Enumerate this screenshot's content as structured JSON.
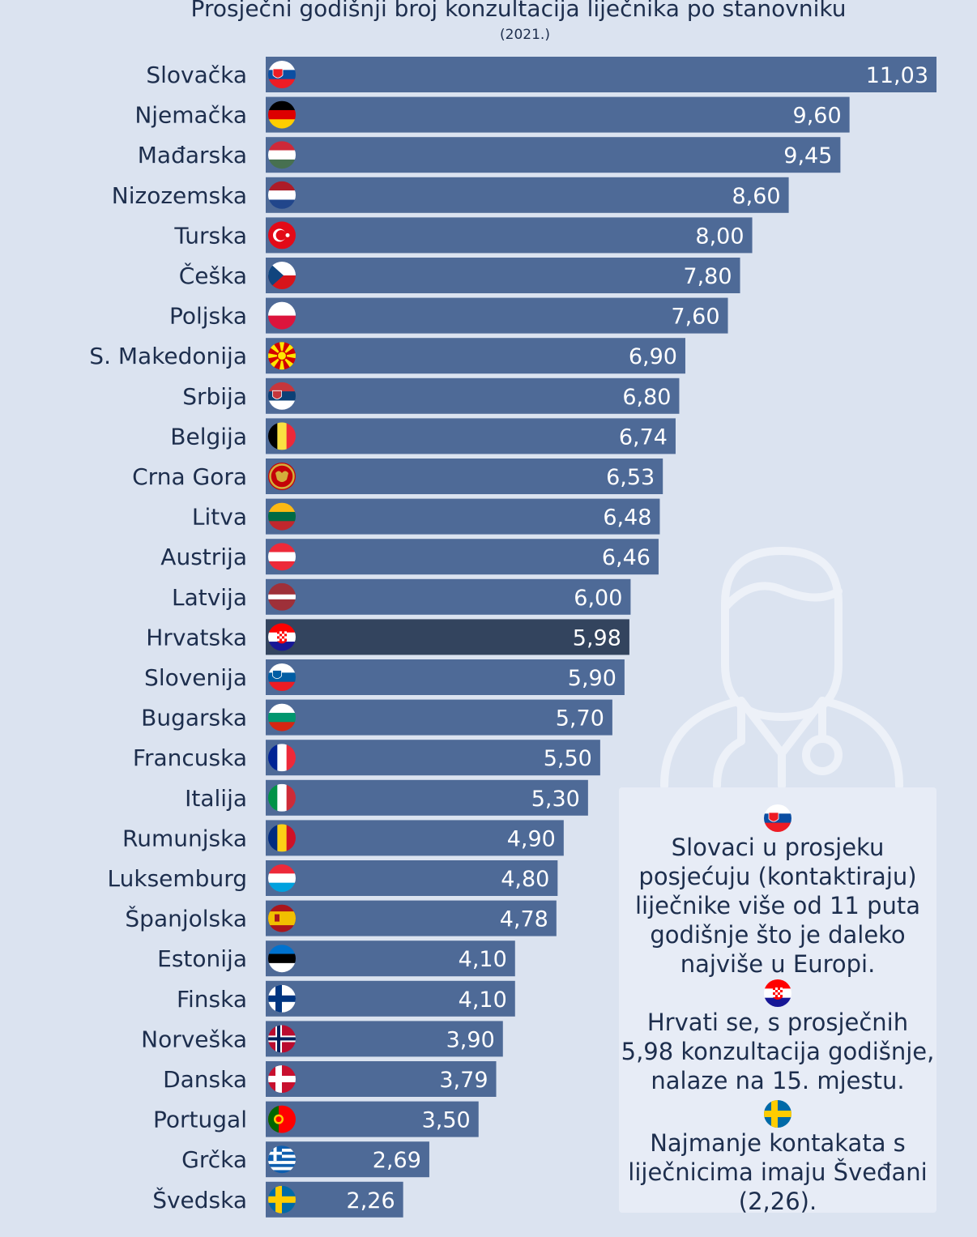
{
  "chart_data": {
    "type": "bar",
    "orientation": "horizontal",
    "title": "Prosječni godišnji broj konzultacija liječnika po stanovniku",
    "subtitle": "(2021.)",
    "categories": [
      "Slovačka",
      "Njemačka",
      "Mađarska",
      "Nizozemska",
      "Turska",
      "Češka",
      "Poljska",
      "S. Makedonija",
      "Srbija",
      "Belgija",
      "Crna Gora",
      "Litva",
      "Austrija",
      "Latvija",
      "Hrvatska",
      "Slovenija",
      "Bugarska",
      "Francuska",
      "Italija",
      "Rumunjska",
      "Luksemburg",
      "Španjolska",
      "Estonija",
      "Finska",
      "Norveška",
      "Danska",
      "Portugal",
      "Grčka",
      "Švedska"
    ],
    "values": [
      11.03,
      9.6,
      9.45,
      8.6,
      8.0,
      7.8,
      7.6,
      6.9,
      6.8,
      6.74,
      6.53,
      6.48,
      6.46,
      6.0,
      5.98,
      5.9,
      5.7,
      5.5,
      5.3,
      4.9,
      4.8,
      4.78,
      4.1,
      4.1,
      3.9,
      3.79,
      3.5,
      2.69,
      2.26
    ],
    "value_labels": [
      "11,03",
      "9,60",
      "9,45",
      "8,60",
      "8,00",
      "7,80",
      "7,60",
      "6,90",
      "6,80",
      "6,74",
      "6,53",
      "6,48",
      "6,46",
      "6,00",
      "5,98",
      "5,90",
      "5,70",
      "5,50",
      "5,30",
      "4,90",
      "4,80",
      "4,78",
      "4,10",
      "4,10",
      "3,90",
      "3,79",
      "3,50",
      "2,69",
      "2,26"
    ],
    "flags": [
      "flag-slovakia-icon",
      "flag-germany-icon",
      "flag-hungary-icon",
      "flag-netherlands-icon",
      "flag-turkey-icon",
      "flag-czechia-icon",
      "flag-poland-icon",
      "flag-north-macedonia-icon",
      "flag-serbia-icon",
      "flag-belgium-icon",
      "flag-montenegro-icon",
      "flag-lithuania-icon",
      "flag-austria-icon",
      "flag-latvia-icon",
      "flag-croatia-icon",
      "flag-slovenia-icon",
      "flag-bulgaria-icon",
      "flag-france-icon",
      "flag-italy-icon",
      "flag-romania-icon",
      "flag-luxembourg-icon",
      "flag-spain-icon",
      "flag-estonia-icon",
      "flag-finland-icon",
      "flag-norway-icon",
      "flag-denmark-icon",
      "flag-portugal-icon",
      "flag-greece-icon",
      "flag-sweden-icon"
    ],
    "highlight": "Hrvatska",
    "xlim": [
      0,
      11.03
    ],
    "grid": false,
    "legend": "none"
  },
  "colors": {
    "background": "#dbe3f0",
    "bar": "#4e6a97",
    "bar_highlight": "#33445e",
    "text": "#1d2e4d",
    "value_text": "#ffffff"
  },
  "info_box": {
    "items": [
      {
        "flag": "flag-slovakia-icon",
        "text": "Slovaci u prosjeku posjećuju (kontaktiraju) liječnike više od 11 puta godišnje što je daleko najviše u Europi."
      },
      {
        "flag": "flag-croatia-icon",
        "text": "Hrvati se, s prosječnih 5,98 konzultacija godišnje, nalaze na 15. mjestu."
      },
      {
        "flag": "flag-sweden-icon",
        "text": "Najmanje kontakata s liječnicima imaju Šveđani (2,26)."
      }
    ]
  },
  "decoration": {
    "icon": "doctor-icon"
  }
}
